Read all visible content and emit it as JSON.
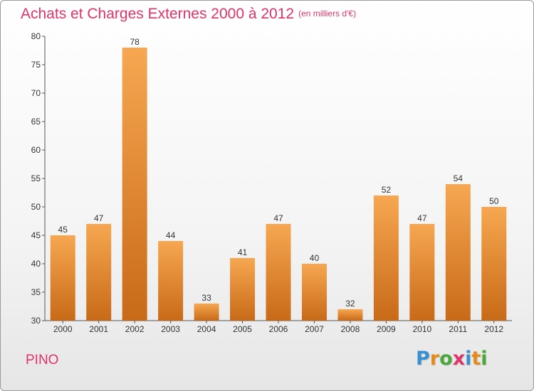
{
  "header": {
    "title": "Achats et Charges Externes 2000 à 2012",
    "subtitle": "(en milliers d'€)"
  },
  "footer": {
    "commune": "PINO",
    "logo_text": "Proxiti",
    "logo_colors": [
      "#3a8fd0",
      "#e58a1c",
      "#4aa73a",
      "#e0336a",
      "#3a8fd0",
      "#e58a1c",
      "#4aa73a"
    ]
  },
  "colors": {
    "bar_light": "#f7a751",
    "bar_dark": "#c86a18",
    "title": "#e0336a"
  },
  "chart_data": {
    "type": "bar",
    "title": "Achats et Charges Externes 2000 à 2012",
    "subtitle": "(en milliers d'€)",
    "categories": [
      "2000",
      "2001",
      "2002",
      "2003",
      "2004",
      "2005",
      "2006",
      "2007",
      "2008",
      "2009",
      "2010",
      "2011",
      "2012"
    ],
    "values": [
      45,
      47,
      78,
      44,
      33,
      41,
      47,
      40,
      32,
      52,
      47,
      54,
      50
    ],
    "ylim": [
      30,
      80
    ],
    "yticks": [
      30,
      35,
      40,
      45,
      50,
      55,
      60,
      65,
      70,
      75,
      80
    ],
    "grid": false,
    "legend": "none"
  }
}
